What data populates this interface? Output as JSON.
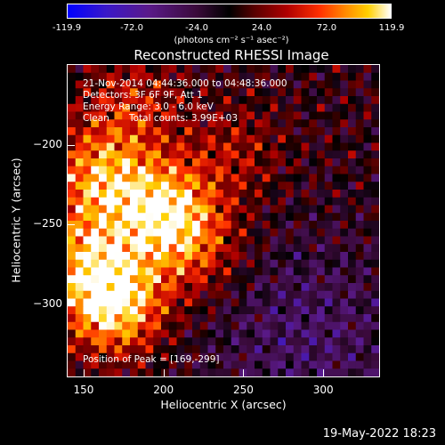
{
  "colorbar": {
    "ticks": [
      "-119.9",
      "-72.0",
      "-24.0",
      "24.0",
      "72.0",
      "119.9"
    ],
    "units": "(photons cm⁻² s⁻¹ asec⁻²)"
  },
  "annotations": {
    "time_range": "21-Nov-2014 04:44:36.000 to 04:48:36.000",
    "detectors": "Detectors: 3F 6F 9F, Att 1",
    "energy_range": "Energy Range: 3.0 - 6.0 keV",
    "algorithm": "Clean",
    "total_counts": "Total counts: 3.99E+03",
    "peak": "Position of Peak = [169,-299]"
  },
  "datestamp": "19-May-2022 18:23",
  "chart_data": {
    "type": "heatmap",
    "title": "Reconstructed RHESSI Image",
    "xlabel": "Heliocentric X (arcsec)",
    "ylabel": "Heliocentric Y (arcsec)",
    "xlim": [
      140,
      335
    ],
    "ylim": [
      -345,
      -150
    ],
    "xticks": [
      150,
      200,
      250,
      300
    ],
    "yticks": [
      -200,
      -250,
      -300
    ],
    "zlim": [
      -119.9,
      119.9
    ],
    "peak": [
      169,
      -299
    ],
    "sources": [
      {
        "x": 169,
        "y": -299,
        "amp": 119.9
      },
      {
        "x": 200,
        "y": -240,
        "amp": 100
      },
      {
        "x": 160,
        "y": -220,
        "amp": 85
      },
      {
        "x": 150,
        "y": -270,
        "amp": 70
      },
      {
        "x": 220,
        "y": -265,
        "amp": 55
      },
      {
        "x": 180,
        "y": -175,
        "amp": 45
      },
      {
        "x": 245,
        "y": -205,
        "amp": 35
      }
    ]
  }
}
